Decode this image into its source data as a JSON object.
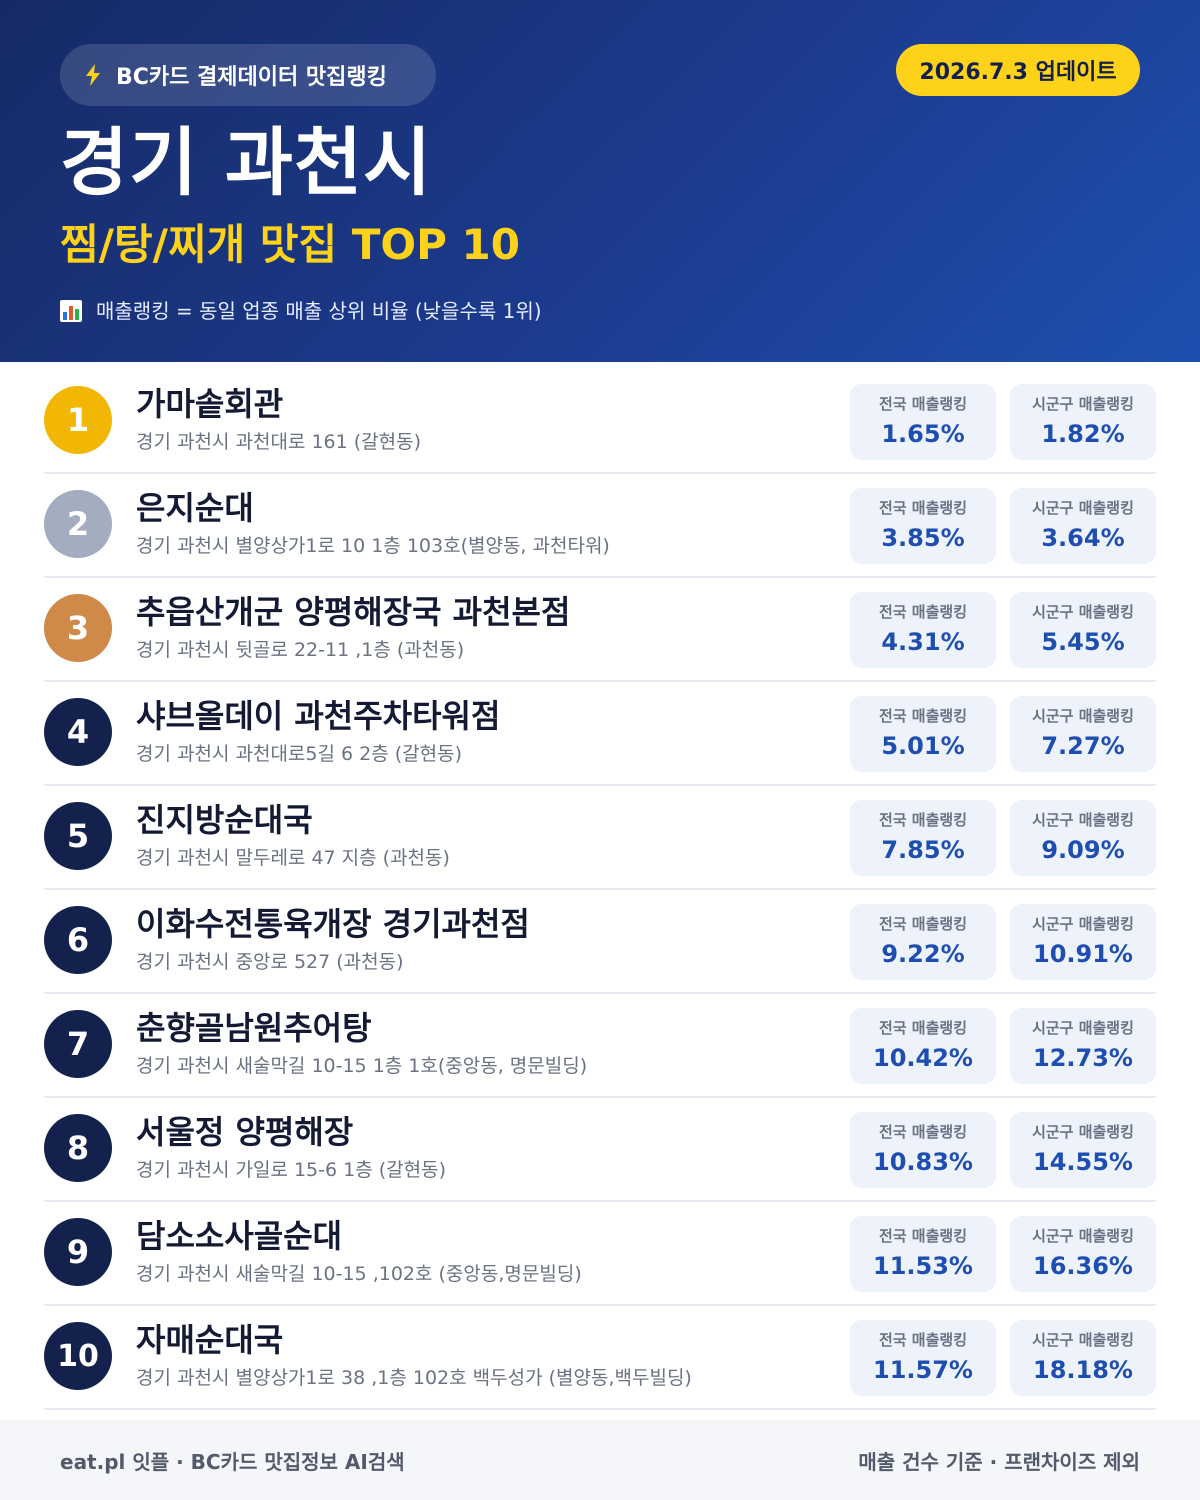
{
  "header": {
    "badge_label": "BC카드 결제데이터 맛집랭킹",
    "badge_icon": "lightning-icon",
    "update_label": "2026.7.3 업데이트",
    "city": "경기 과천시",
    "subtitle": "찜/탕/찌개 맛집 TOP 10",
    "legend_icon": "bar-chart-icon",
    "legend_text": "매출랭킹 = 동일 업종 매출 상위 비율 (낮을수록 1위)"
  },
  "stat_labels": {
    "national": "전국 매출랭킹",
    "local": "시군구 매출랭킹"
  },
  "restaurants": [
    {
      "rank": "1",
      "name": "가마솥회관",
      "address": "경기 과천시 과천대로 161 (갈현동)",
      "national": "1.65%",
      "local": "1.82%"
    },
    {
      "rank": "2",
      "name": "은지순대",
      "address": "경기 과천시 별양상가1로 10 1층 103호(별양동, 과천타워)",
      "national": "3.85%",
      "local": "3.64%"
    },
    {
      "rank": "3",
      "name": "추읍산개군 양평해장국 과천본점",
      "address": "경기 과천시 뒷골로 22-11 ,1층 (과천동)",
      "national": "4.31%",
      "local": "5.45%"
    },
    {
      "rank": "4",
      "name": "샤브올데이 과천주차타워점",
      "address": "경기 과천시 과천대로5길 6 2층 (갈현동)",
      "national": "5.01%",
      "local": "7.27%"
    },
    {
      "rank": "5",
      "name": "진지방순대국",
      "address": "경기 과천시 말두레로 47 지층 (과천동)",
      "national": "7.85%",
      "local": "9.09%"
    },
    {
      "rank": "6",
      "name": "이화수전통육개장 경기과천점",
      "address": "경기 과천시 중앙로 527 (과천동)",
      "national": "9.22%",
      "local": "10.91%"
    },
    {
      "rank": "7",
      "name": "춘향골남원추어탕",
      "address": "경기 과천시 새술막길 10-15 1층 1호(중앙동, 명문빌딩)",
      "national": "10.42%",
      "local": "12.73%"
    },
    {
      "rank": "8",
      "name": "서울정 양평해장",
      "address": "경기 과천시 가일로 15-6 1층 (갈현동)",
      "national": "10.83%",
      "local": "14.55%"
    },
    {
      "rank": "9",
      "name": "담소소사골순대",
      "address": "경기 과천시 새술막길 10-15 ,102호 (중앙동,명문빌딩)",
      "national": "11.53%",
      "local": "16.36%"
    },
    {
      "rank": "10",
      "name": "자매순대국",
      "address": "경기 과천시 별양상가1로 38 ,1층 102호 백두성가 (별양동,백두빌딩)",
      "national": "11.57%",
      "local": "18.18%"
    }
  ],
  "footer": {
    "left": "eat.pl 잇플 · BC카드 맛집정보 AI검색",
    "right": "매출 건수 기준 · 프랜차이즈 제외"
  },
  "colors": {
    "header_navy": "#162a66",
    "header_blue": "#1e4fb0",
    "accent_yellow": "#ffd21a",
    "gold": "#f2b705",
    "silver": "#a3adbf",
    "bronze": "#cf8a4a",
    "rank_navy": "#14214d"
  }
}
